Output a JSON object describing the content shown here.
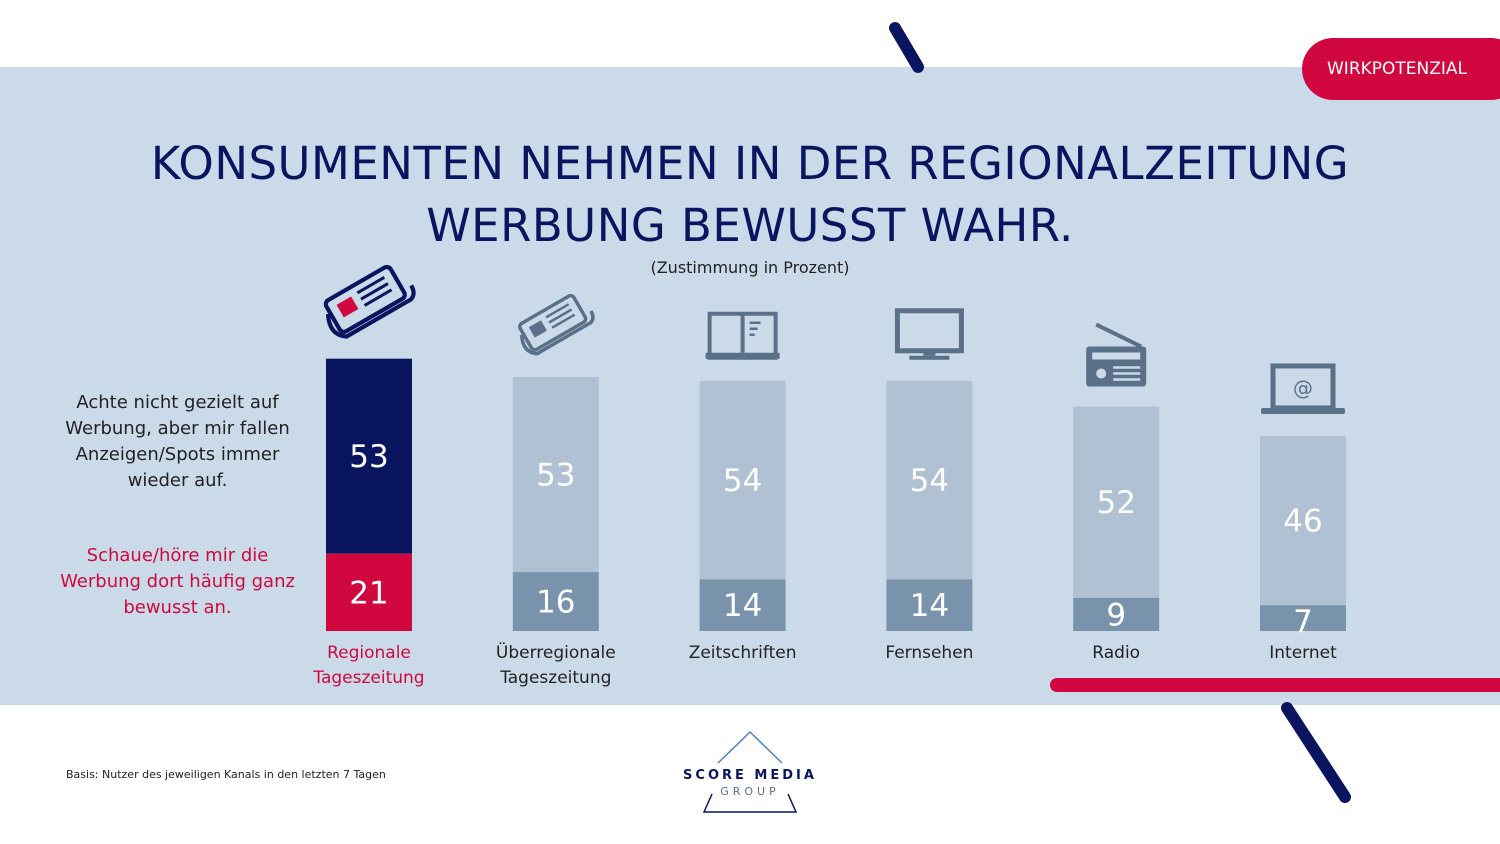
{
  "badge": "WIRKPOTENZIAL",
  "title_line1": "KONSUMENTEN NEHMEN IN DER REGIONALZEITUNG",
  "title_line2": "WERBUNG BEWUSST WAHR.",
  "subtitle": "(Zustimmung in Prozent)",
  "legend": {
    "upper": "Achte nicht gezielt auf Werbung, aber mir fallen Anzeigen/Spots immer wieder auf.",
    "lower": "Schaue/höre mir die Werbung dort häufig ganz bewusst an."
  },
  "footnote": "Basis: Nutzer des jeweiligen Kanals in den letzten 7 Tagen",
  "logo": {
    "line1": "SCORE MEDIA",
    "line2": "GROUP"
  },
  "colors": {
    "background": "#cbdae8",
    "navy": "#0a1560",
    "accent_red": "#d0083f",
    "bar_upper": "#afc1d2",
    "bar_lower": "#7a93ad",
    "icon": "#5a7088"
  },
  "chart_data": {
    "type": "bar",
    "stacked": true,
    "categories": [
      "Regionale Tageszeitung",
      "Überregionale Tageszeitung",
      "Zeitschriften",
      "Fernsehen",
      "Radio",
      "Internet"
    ],
    "category_icons": [
      "newspaper-icon",
      "newspaper-icon",
      "magazine-icon",
      "tv-icon",
      "radio-icon",
      "laptop-icon"
    ],
    "highlight_category": "Regionale Tageszeitung",
    "series": [
      {
        "name": "Schaue/höre mir die Werbung dort häufig ganz bewusst an.",
        "values": [
          21,
          16,
          14,
          14,
          9,
          7
        ]
      },
      {
        "name": "Achte nicht gezielt auf Werbung, aber mir fallen Anzeigen/Spots immer wieder auf.",
        "values": [
          53,
          53,
          54,
          54,
          52,
          46
        ]
      }
    ],
    "ylim": [
      0,
      80
    ],
    "grid": false,
    "data_labels": true
  }
}
